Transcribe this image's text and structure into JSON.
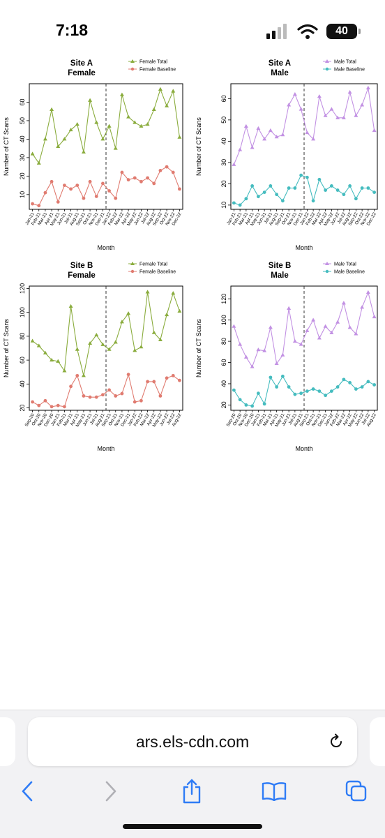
{
  "status": {
    "time": "7:18",
    "battery": "40"
  },
  "browser": {
    "url": "ars.els-cdn.com"
  },
  "icons": {
    "back": "chevron-left-icon",
    "forward": "chevron-right-icon",
    "share": "share-icon",
    "bookmarks": "book-icon",
    "tabs": "tabs-icon",
    "reload": "reload-icon",
    "signal": "signal-icon",
    "wifi": "wifi-icon",
    "battery": "battery-icon"
  },
  "colors": {
    "female_total": "#8aac3d",
    "female_baseline": "#e07b70",
    "male_total": "#c291e3",
    "male_baseline": "#45bcbf",
    "accent": "#2f7cf6"
  },
  "chart_data": [
    {
      "type": "line",
      "title": "Site A\nFemale",
      "xlabel": "Month",
      "ylabel": "Number of CT Scans",
      "categories": [
        "Jan-21",
        "Feb-21",
        "Mar-21",
        "Apr-21",
        "May-21",
        "Jun-21",
        "Jul-21",
        "Aug-21",
        "Sep-21",
        "Oct-21",
        "Nov-21",
        "Dec-21",
        "Jan-22",
        "Feb-22",
        "Mar-22",
        "Apr-22",
        "May-22",
        "Jun-22",
        "Jul-22",
        "Aug-22",
        "Sep-22",
        "Oct-22",
        "Nov-22",
        "Dec-22"
      ],
      "ylim": [
        2,
        70
      ],
      "yticks": [
        10,
        20,
        30,
        40,
        50,
        60
      ],
      "divider_after": "Dec-21",
      "legend_position": "top-right",
      "series": [
        {
          "name": "Female Total",
          "marker": "triangle",
          "color": "#8aac3d",
          "values": [
            32,
            27,
            40,
            56,
            36,
            40,
            45,
            48,
            33,
            61,
            49,
            40,
            47,
            35,
            64,
            52,
            49,
            47,
            48,
            56,
            67,
            58,
            66,
            41
          ]
        },
        {
          "name": "Female Baseline",
          "marker": "circle",
          "color": "#e07b70",
          "values": [
            5,
            4,
            11,
            17,
            6,
            15,
            13,
            15,
            8,
            17,
            9,
            16,
            12,
            8,
            22,
            18,
            19,
            17,
            19,
            16,
            23,
            25,
            22,
            13
          ]
        }
      ]
    },
    {
      "type": "line",
      "title": "Site A\nMale",
      "xlabel": "Month",
      "ylabel": "Number of CT Scans",
      "categories": [
        "Jan-21",
        "Feb-21",
        "Mar-21",
        "Apr-21",
        "May-21",
        "Jun-21",
        "Jul-21",
        "Aug-21",
        "Sep-21",
        "Oct-21",
        "Nov-21",
        "Dec-21",
        "Jan-22",
        "Feb-22",
        "Mar-22",
        "Apr-22",
        "May-22",
        "Jun-22",
        "Jul-22",
        "Aug-22",
        "Sep-22",
        "Oct-22",
        "Nov-22",
        "Dec-22"
      ],
      "ylim": [
        8,
        67
      ],
      "yticks": [
        10,
        20,
        30,
        40,
        50,
        60
      ],
      "divider_after": "Dec-21",
      "legend_position": "top-right",
      "series": [
        {
          "name": "Male Total",
          "marker": "triangle",
          "color": "#c291e3",
          "values": [
            29,
            36,
            47,
            37,
            46,
            41,
            45,
            42,
            43,
            57,
            62,
            55,
            44,
            41,
            61,
            52,
            55,
            51,
            51,
            63,
            52,
            57,
            65,
            45
          ]
        },
        {
          "name": "Male Baseline",
          "marker": "circle",
          "color": "#45bcbf",
          "values": [
            11,
            10,
            13,
            19,
            14,
            16,
            19,
            15,
            12,
            18,
            18,
            24,
            23,
            12,
            22,
            17,
            19,
            17,
            15,
            19,
            13,
            18,
            18,
            16
          ]
        }
      ]
    },
    {
      "type": "line",
      "title": "Site B\nFemale",
      "xlabel": "Month",
      "ylabel": "Number of CT Scans",
      "categories": [
        "Sep-20",
        "Oct-20",
        "Nov-20",
        "Dec-20",
        "Jan-21",
        "Feb-21",
        "Mar-21",
        "Apr-21",
        "May-21",
        "Jun-21",
        "Jul-21",
        "Aug-21",
        "Sep-21",
        "Oct-21",
        "Nov-21",
        "Dec-21",
        "Jan-22",
        "Feb-22",
        "Mar-22",
        "Apr-22",
        "May-22",
        "Jun-22",
        "Jul-22",
        "Aug-22"
      ],
      "ylim": [
        18,
        122
      ],
      "yticks": [
        20,
        40,
        60,
        80,
        100,
        120
      ],
      "divider_after": "Aug-21",
      "legend_position": "top-right",
      "series": [
        {
          "name": "Female Total",
          "marker": "triangle",
          "color": "#8aac3d",
          "values": [
            76,
            72,
            66,
            60,
            59,
            51,
            105,
            69,
            47,
            74,
            81,
            73,
            69,
            75,
            92,
            99,
            68,
            71,
            117,
            83,
            77,
            98,
            116,
            101
          ]
        },
        {
          "name": "Female Baseline",
          "marker": "circle",
          "color": "#e07b70",
          "values": [
            25,
            22,
            26,
            21,
            22,
            21,
            38,
            47,
            30,
            29,
            29,
            31,
            35,
            30,
            32,
            48,
            25,
            26,
            42,
            42,
            30,
            45,
            47,
            43
          ]
        }
      ]
    },
    {
      "type": "line",
      "title": "Site B\nMale",
      "xlabel": "Month",
      "ylabel": "Number of CT Scans",
      "categories": [
        "Sep-20",
        "Oct-20",
        "Nov-20",
        "Dec-20",
        "Jan-21",
        "Feb-21",
        "Mar-21",
        "Apr-21",
        "May-21",
        "Jun-21",
        "Jul-21",
        "Aug-21",
        "Sep-21",
        "Oct-21",
        "Nov-21",
        "Dec-21",
        "Jan-22",
        "Feb-22",
        "Mar-22",
        "Apr-22",
        "May-22",
        "Jun-22",
        "Jul-22",
        "Aug-22"
      ],
      "ylim": [
        15,
        132
      ],
      "yticks": [
        20,
        40,
        60,
        80,
        100,
        120
      ],
      "divider_after": "Aug-21",
      "legend_position": "top-right",
      "series": [
        {
          "name": "Male Total",
          "marker": "triangle",
          "color": "#c291e3",
          "values": [
            94,
            77,
            65,
            56,
            72,
            71,
            93,
            59,
            67,
            111,
            80,
            77,
            90,
            100,
            83,
            94,
            88,
            98,
            116,
            93,
            87,
            112,
            126,
            103
          ]
        },
        {
          "name": "Male Baseline",
          "marker": "circle",
          "color": "#45bcbf",
          "values": [
            34,
            25,
            20,
            19,
            31,
            21,
            46,
            37,
            47,
            37,
            30,
            31,
            33,
            35,
            33,
            29,
            33,
            37,
            44,
            41,
            35,
            37,
            42,
            39
          ]
        }
      ]
    }
  ]
}
